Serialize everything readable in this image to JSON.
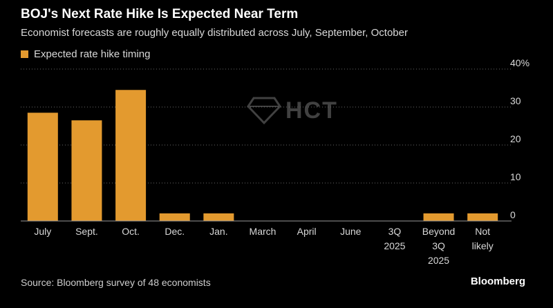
{
  "title": "BOJ's Next Rate Hike Is Expected Near Term",
  "subtitle": "Economist forecasts are roughly equally distributed across July, September, October",
  "legend_label": "Expected rate hike timing",
  "source": "Source: Bloomberg survey of 48 economists",
  "brand": "Bloomberg",
  "watermark": "HCT",
  "colors": {
    "bar": "#e39a2f",
    "background": "#000000",
    "grid": "#6a6a6a",
    "text": "#d9d9d9"
  },
  "chart_data": {
    "type": "bar",
    "title": "BOJ's Next Rate Hike Is Expected Near Term",
    "series": [
      {
        "name": "Expected rate hike timing",
        "values": [
          28.5,
          26.5,
          34.5,
          2,
          2,
          0,
          0,
          0,
          0,
          2,
          2
        ]
      }
    ],
    "categories": [
      [
        "July"
      ],
      [
        "Sept."
      ],
      [
        "Oct."
      ],
      [
        "Dec."
      ],
      [
        "Jan."
      ],
      [
        "March"
      ],
      [
        "April"
      ],
      [
        "June"
      ],
      [
        "3Q",
        "2025"
      ],
      [
        "Beyond",
        "3Q",
        "2025"
      ],
      [
        "Not",
        "likely"
      ]
    ],
    "yticks": [
      "0",
      "10",
      "20",
      "30",
      "40%"
    ],
    "ytick_values": [
      0,
      10,
      20,
      30,
      40
    ],
    "ylim": [
      0,
      40
    ],
    "xlabel": "",
    "ylabel": "",
    "grid": true,
    "y_axis_side": "right"
  }
}
